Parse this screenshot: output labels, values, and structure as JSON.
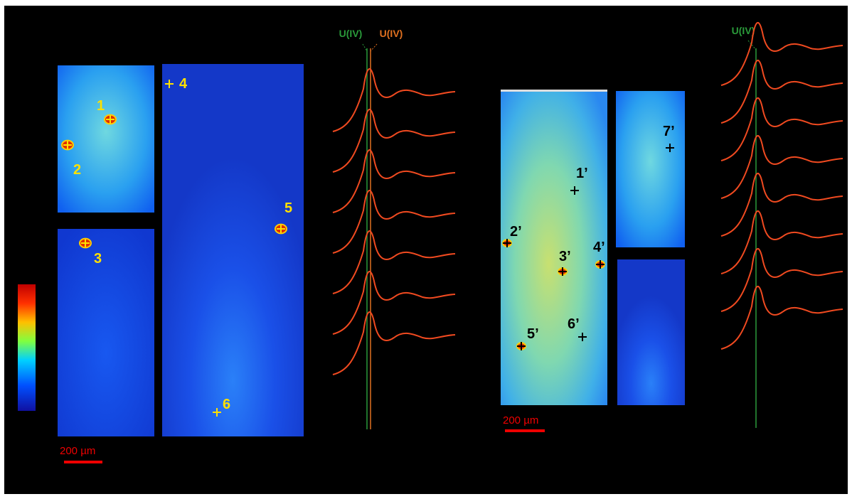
{
  "left": {
    "points": [
      "1",
      "2",
      "3",
      "4",
      "5",
      "6"
    ],
    "spectra_labels": [
      "U(IV)",
      "U(IV)"
    ],
    "scale_bar": "200 µm"
  },
  "right": {
    "points": [
      "1’",
      "2’",
      "3’",
      "4’",
      "5’",
      "6’",
      "7’"
    ],
    "spectra_labels": [
      "U(IV)"
    ],
    "scale_bar": "200 µm"
  }
}
